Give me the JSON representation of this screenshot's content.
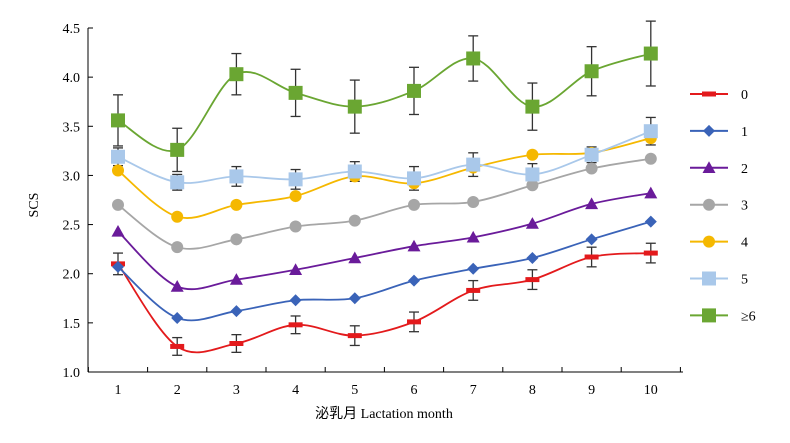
{
  "chart_data": {
    "type": "line",
    "title": "",
    "xlabel": "泌乳月 Lactation month",
    "ylabel": "SCS",
    "x": [
      1,
      2,
      3,
      4,
      5,
      6,
      7,
      8,
      9,
      10
    ],
    "xticks": [
      "1",
      "2",
      "3",
      "4",
      "5",
      "6",
      "7",
      "8",
      "9",
      "10"
    ],
    "ylim": [
      1.0,
      4.5
    ],
    "yticks": [
      "1.0",
      "1.5",
      "2.0",
      "2.5",
      "3.0",
      "3.5",
      "4.0",
      "4.5"
    ],
    "grid": false,
    "legend_position": "right",
    "series": [
      {
        "name": "0",
        "color": "#e31a1c",
        "marker": "dash",
        "values": [
          2.1,
          1.26,
          1.29,
          1.48,
          1.37,
          1.51,
          1.83,
          1.94,
          2.17,
          2.21
        ],
        "errors": [
          0.11,
          0.09,
          0.09,
          0.09,
          0.1,
          0.1,
          0.1,
          0.1,
          0.1,
          0.1
        ]
      },
      {
        "name": "1",
        "color": "#3a63b8",
        "marker": "diamond",
        "values": [
          2.07,
          1.55,
          1.62,
          1.73,
          1.75,
          1.93,
          2.05,
          2.16,
          2.35,
          2.53
        ],
        "errors": []
      },
      {
        "name": "2",
        "color": "#6a1b9a",
        "marker": "triangle",
        "values": [
          2.43,
          1.87,
          1.94,
          2.04,
          2.16,
          2.28,
          2.37,
          2.51,
          2.71,
          2.82
        ],
        "errors": []
      },
      {
        "name": "3",
        "color": "#a6a6a6",
        "marker": "circle",
        "values": [
          2.7,
          2.27,
          2.35,
          2.48,
          2.54,
          2.7,
          2.73,
          2.9,
          3.07,
          3.17
        ],
        "errors": []
      },
      {
        "name": "4",
        "color": "#f5b800",
        "marker": "circle",
        "values": [
          3.05,
          2.58,
          2.7,
          2.79,
          2.99,
          2.92,
          3.08,
          3.21,
          3.23,
          3.38
        ],
        "errors": []
      },
      {
        "name": "5",
        "color": "#a9c8ea",
        "marker": "square",
        "values": [
          3.19,
          2.93,
          2.99,
          2.96,
          3.04,
          2.97,
          3.11,
          3.01,
          3.21,
          3.45
        ],
        "errors": [
          0.09,
          0.08,
          0.1,
          0.1,
          0.1,
          0.12,
          0.12,
          0.11,
          0.08,
          0.14
        ]
      },
      {
        "name": "≥6",
        "color": "#6aa632",
        "marker": "square",
        "values": [
          3.56,
          3.26,
          4.03,
          3.84,
          3.7,
          3.86,
          4.19,
          3.7,
          4.06,
          4.24
        ],
        "errors": [
          0.26,
          0.22,
          0.21,
          0.24,
          0.27,
          0.24,
          0.23,
          0.24,
          0.25,
          0.33
        ]
      }
    ]
  }
}
